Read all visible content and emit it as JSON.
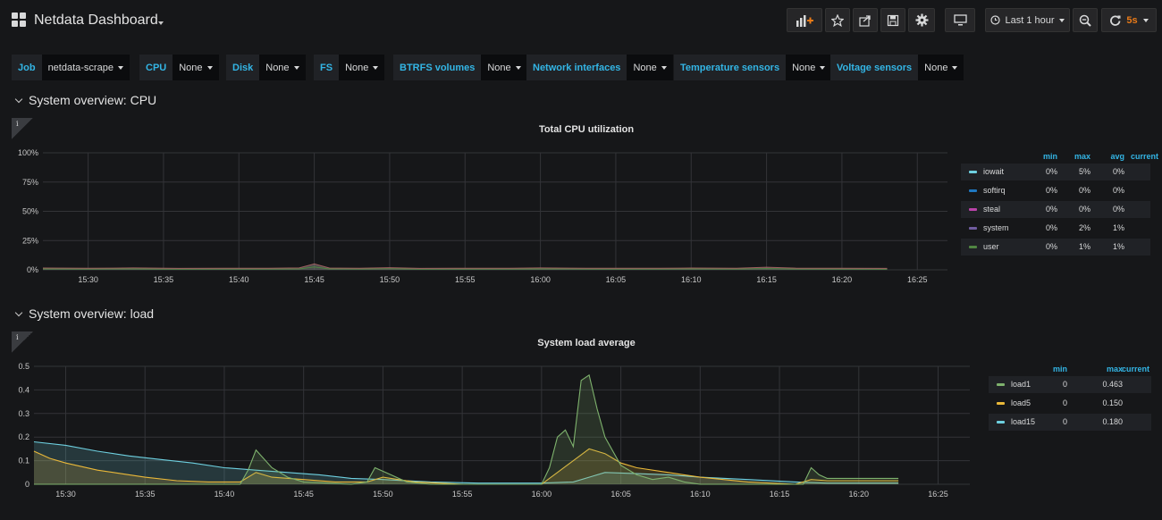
{
  "nav": {
    "title": "Netdata Dashboard",
    "time_range": "Last 1 hour",
    "refresh": "5s"
  },
  "variables": [
    {
      "label": "Job",
      "value": "netdata-scrape"
    },
    {
      "label": "CPU",
      "value": "None"
    },
    {
      "label": "Disk",
      "value": "None"
    },
    {
      "label": "FS",
      "value": "None"
    },
    {
      "label": "BTRFS volumes",
      "value": "None"
    },
    {
      "label": "Network interfaces",
      "value": "None"
    },
    {
      "label": "Temperature sensors",
      "value": "None"
    },
    {
      "label": "Voltage sensors",
      "value": "None"
    }
  ],
  "rows": [
    {
      "title": "System overview: CPU"
    },
    {
      "title": "System overview: load"
    }
  ],
  "colors": {
    "accent": "#33b5e5",
    "refresh": "#eb7b18",
    "iowait": "#6ed0e0",
    "softirq": "#1f78c1",
    "steal": "#ba43a9",
    "system": "#705da0",
    "user": "#508642",
    "load1": "#7eb26d",
    "load5": "#eab839",
    "load15": "#6ed0e0"
  },
  "chart_data": [
    {
      "type": "area",
      "title": "Total CPU utilization",
      "yticks": [
        "0%",
        "25%",
        "50%",
        "75%",
        "100%"
      ],
      "ylim": [
        0,
        100
      ],
      "xticks": [
        "15:30",
        "15:35",
        "15:40",
        "15:45",
        "15:50",
        "15:55",
        "16:00",
        "16:05",
        "16:10",
        "16:15",
        "16:20",
        "16:25"
      ],
      "x_start": "15:27",
      "x_end": "16:27",
      "grid": true,
      "legend_placement": "right",
      "legend_columns": [
        "min",
        "max",
        "avg",
        "current"
      ],
      "series": [
        {
          "name": "iowait",
          "min": "0%",
          "max": "5%",
          "avg": "0%",
          "current": ""
        },
        {
          "name": "softirq",
          "min": "0%",
          "max": "0%",
          "avg": "0%",
          "current": ""
        },
        {
          "name": "steal",
          "min": "0%",
          "max": "0%",
          "avg": "0%",
          "current": ""
        },
        {
          "name": "system",
          "min": "0%",
          "max": "2%",
          "avg": "1%",
          "current": ""
        },
        {
          "name": "user",
          "min": "0%",
          "max": "1%",
          "avg": "1%",
          "current": ""
        }
      ],
      "stack_points": [
        [
          "15:27",
          1.5
        ],
        [
          "15:30",
          1.3
        ],
        [
          "15:33",
          1.6
        ],
        [
          "15:36",
          1.2
        ],
        [
          "15:39",
          1.4
        ],
        [
          "15:42",
          1.3
        ],
        [
          "15:44",
          1.6
        ],
        [
          "15:45",
          5
        ],
        [
          "15:46",
          1.5
        ],
        [
          "15:48",
          1.3
        ],
        [
          "15:50",
          1.8
        ],
        [
          "15:52",
          1.2
        ],
        [
          "15:55",
          1.4
        ],
        [
          "15:58",
          1.3
        ],
        [
          "16:00",
          1.6
        ],
        [
          "16:03",
          1.3
        ],
        [
          "16:05",
          1.4
        ],
        [
          "16:08",
          1.3
        ],
        [
          "16:10",
          1.5
        ],
        [
          "16:13",
          1.3
        ],
        [
          "16:15",
          2.2
        ],
        [
          "16:17",
          1.4
        ],
        [
          "16:20",
          1.3
        ],
        [
          "16:23",
          1.2
        ]
      ]
    },
    {
      "type": "area",
      "title": "System load average",
      "yticks": [
        "0",
        "0.1",
        "0.2",
        "0.3",
        "0.4",
        "0.5"
      ],
      "ylim": [
        0,
        0.5
      ],
      "xticks": [
        "15:30",
        "15:35",
        "15:40",
        "15:45",
        "15:50",
        "15:55",
        "16:00",
        "16:05",
        "16:10",
        "16:15",
        "16:20",
        "16:25"
      ],
      "x_start": "15:28",
      "x_end": "16:27",
      "grid": true,
      "legend_placement": "right",
      "legend_columns": [
        "min",
        "max",
        "current"
      ],
      "series": [
        {
          "name": "load1",
          "min": "0",
          "max": "0.463",
          "current": "",
          "points": [
            [
              "15:28",
              0
            ],
            [
              "15:41",
              0
            ],
            [
              "15:41.5",
              0.06
            ],
            [
              "15:42",
              0.145
            ],
            [
              "15:43",
              0.07
            ],
            [
              "15:44",
              0.03
            ],
            [
              "15:45",
              0.01
            ],
            [
              "15:48",
              0
            ],
            [
              "15:49",
              0.01
            ],
            [
              "15:49.5",
              0.07
            ],
            [
              "15:50.5",
              0.04
            ],
            [
              "15:51.5",
              0.01
            ],
            [
              "15:53",
              0
            ],
            [
              "16:00",
              0
            ],
            [
              "16:00.5",
              0.07
            ],
            [
              "16:01",
              0.2
            ],
            [
              "16:01.5",
              0.23
            ],
            [
              "16:02",
              0.16
            ],
            [
              "16:02.5",
              0.44
            ],
            [
              "16:03",
              0.463
            ],
            [
              "16:03.5",
              0.32
            ],
            [
              "16:04",
              0.2
            ],
            [
              "16:05",
              0.08
            ],
            [
              "16:06",
              0.04
            ],
            [
              "16:07",
              0.02
            ],
            [
              "16:08",
              0.03
            ],
            [
              "16:09",
              0.01
            ],
            [
              "16:10",
              0
            ],
            [
              "16:16.5",
              0
            ],
            [
              "16:17",
              0.07
            ],
            [
              "16:17.5",
              0.04
            ],
            [
              "16:18",
              0.025
            ],
            [
              "16:22.5",
              0.025
            ]
          ]
        },
        {
          "name": "load5",
          "min": "0",
          "max": "0.150",
          "current": "",
          "points": [
            [
              "15:28",
              0.14
            ],
            [
              "15:29",
              0.11
            ],
            [
              "15:30",
              0.09
            ],
            [
              "15:32",
              0.06
            ],
            [
              "15:34",
              0.04
            ],
            [
              "15:35",
              0.03
            ],
            [
              "15:37",
              0.015
            ],
            [
              "15:39",
              0.01
            ],
            [
              "15:41",
              0.01
            ],
            [
              "15:42",
              0.05
            ],
            [
              "15:43",
              0.03
            ],
            [
              "15:45",
              0.02
            ],
            [
              "15:47",
              0.01
            ],
            [
              "15:49",
              0.01
            ],
            [
              "15:50",
              0.03
            ],
            [
              "15:52",
              0.01
            ],
            [
              "15:55",
              0
            ],
            [
              "16:00",
              0
            ],
            [
              "16:01",
              0.05
            ],
            [
              "16:02",
              0.1
            ],
            [
              "16:03",
              0.15
            ],
            [
              "16:04",
              0.13
            ],
            [
              "16:05",
              0.09
            ],
            [
              "16:06",
              0.07
            ],
            [
              "16:08",
              0.05
            ],
            [
              "16:10",
              0.03
            ],
            [
              "16:13",
              0.01
            ],
            [
              "16:16",
              0
            ],
            [
              "16:17",
              0.02
            ],
            [
              "16:18",
              0.015
            ],
            [
              "16:22.5",
              0.015
            ]
          ]
        },
        {
          "name": "load15",
          "min": "0",
          "max": "0.180",
          "current": "",
          "points": [
            [
              "15:28",
              0.18
            ],
            [
              "15:30",
              0.165
            ],
            [
              "15:32",
              0.14
            ],
            [
              "15:34",
              0.12
            ],
            [
              "15:36",
              0.105
            ],
            [
              "15:38",
              0.09
            ],
            [
              "15:40",
              0.07
            ],
            [
              "15:42",
              0.06
            ],
            [
              "15:44",
              0.05
            ],
            [
              "15:46",
              0.04
            ],
            [
              "15:48",
              0.025
            ],
            [
              "15:50",
              0.02
            ],
            [
              "15:53",
              0.01
            ],
            [
              "15:56",
              0.005
            ],
            [
              "16:00",
              0.005
            ],
            [
              "16:02",
              0.01
            ],
            [
              "16:03",
              0.03
            ],
            [
              "16:04",
              0.05
            ],
            [
              "16:06",
              0.045
            ],
            [
              "16:08",
              0.04
            ],
            [
              "16:10",
              0.03
            ],
            [
              "16:13",
              0.02
            ],
            [
              "16:16",
              0.01
            ],
            [
              "16:18",
              0.005
            ],
            [
              "16:22.5",
              0.005
            ]
          ]
        }
      ]
    }
  ]
}
